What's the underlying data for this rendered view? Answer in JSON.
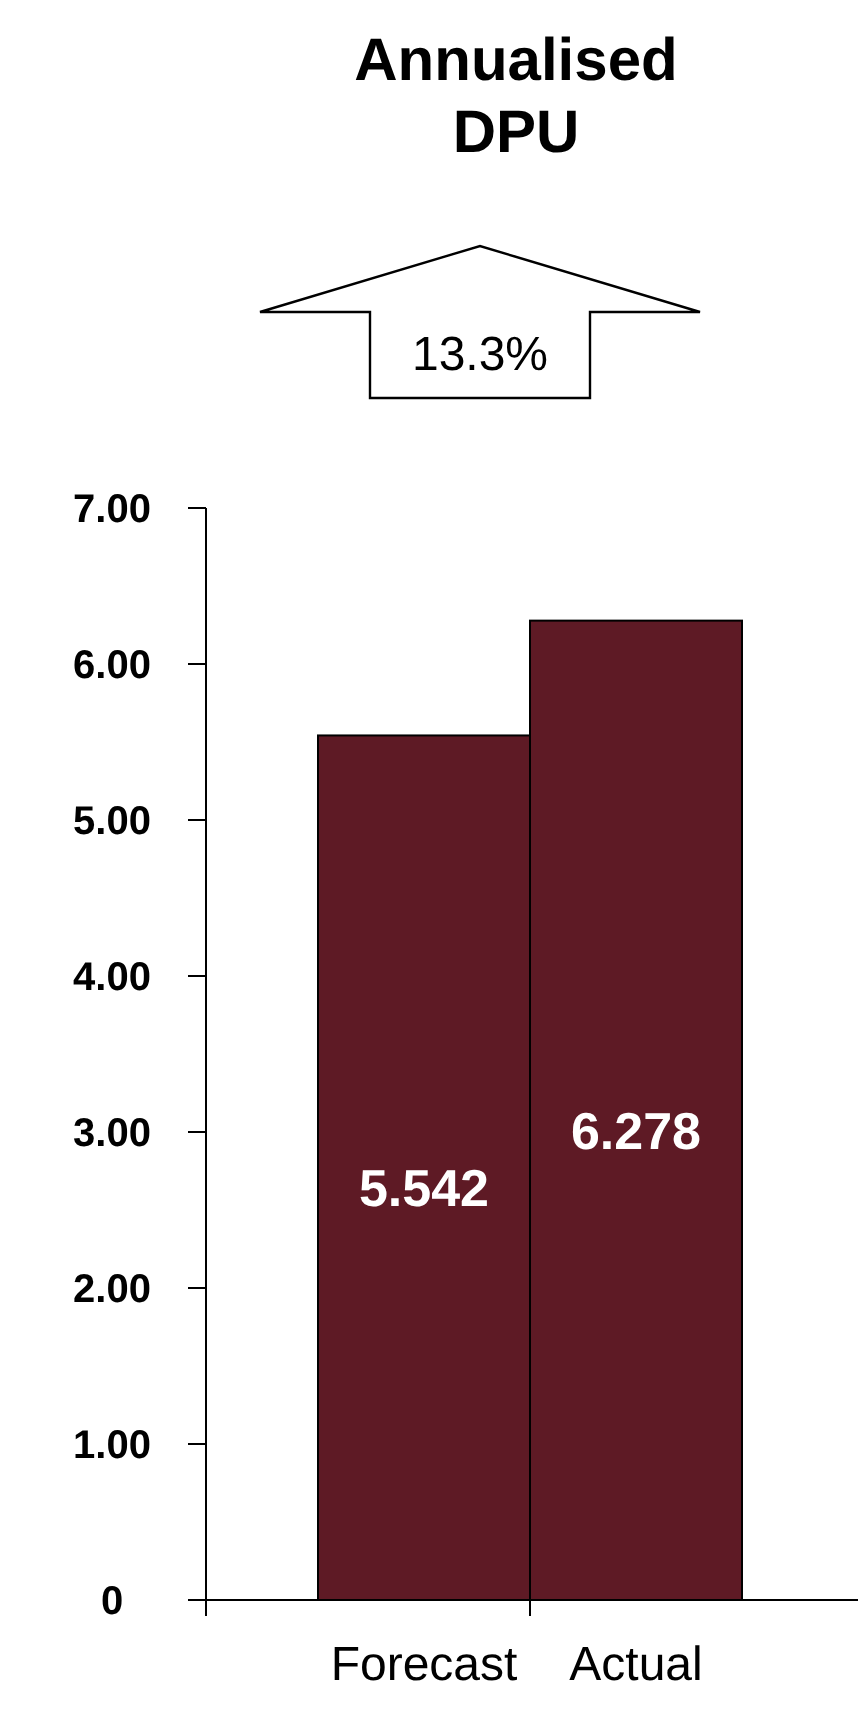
{
  "chart_data": {
    "type": "bar",
    "title": "Annualised DPU",
    "categories": [
      "Forecast",
      "Actual"
    ],
    "values": [
      5.542,
      6.278
    ],
    "color": "#5e1a25",
    "data_labels": true,
    "ylim": [
      0,
      7
    ],
    "yticks": [
      0,
      {
        "value": 1,
        "label": "1.00"
      },
      {
        "value": 2,
        "label": "2.00"
      },
      {
        "value": 3,
        "label": "3.00"
      },
      {
        "value": 4,
        "label": "4.00"
      },
      {
        "value": 5,
        "label": "5.00"
      },
      {
        "value": 6,
        "label": "6.00"
      },
      {
        "value": 7,
        "label": "7.00"
      }
    ],
    "annotations": [
      "13.3%"
    ]
  }
}
